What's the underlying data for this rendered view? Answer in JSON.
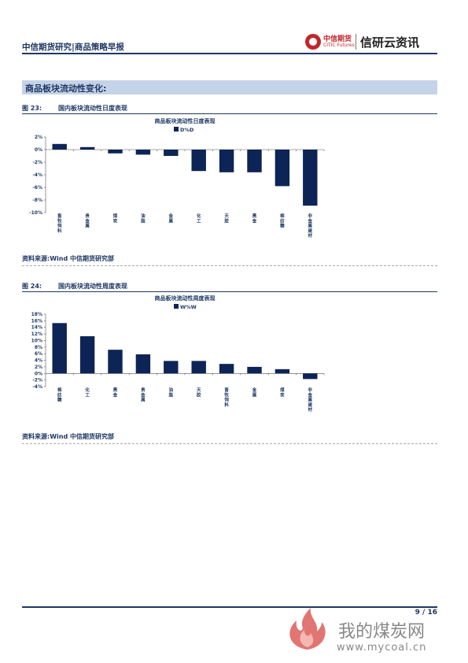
{
  "header": {
    "title": "中信期货研究|商品策略早报",
    "logo_cn": "中信期货",
    "logo_en": "CITIC Futures",
    "brand": "信研云资讯"
  },
  "section": {
    "title": "商品板块流动性变化:"
  },
  "figures": [
    {
      "number": "图 23:",
      "caption": "国内板块流动性日度表现",
      "source": "资料来源:Wind 中信期货研究部"
    },
    {
      "number": "图 24:",
      "caption": "国内板块流动性周度表现",
      "source": "资料来源:Wind 中信期货研究部"
    }
  ],
  "footer": {
    "page": "9 / 16"
  },
  "watermark": {
    "text": "我的煤炭网",
    "url": "www.mycoal.cn"
  },
  "colors": {
    "bar": "#0d2456",
    "accent": "#1f3864",
    "section_bg": "#c5d3e8",
    "logo_red": "#c0272d"
  },
  "chart_data": [
    {
      "type": "bar",
      "title": "商品板块流动性日度表现",
      "categories": [
        "畜牧饲料",
        "贵金属",
        "煤炭",
        "油脂",
        "金属",
        "化工",
        "天胶",
        "黑金",
        "棉纺糖",
        "非金属建材"
      ],
      "series": [
        {
          "name": "D%D",
          "values": [
            0.9,
            0.4,
            -0.6,
            -0.8,
            -1.0,
            -3.4,
            -3.6,
            -3.6,
            -5.8,
            -8.9
          ]
        }
      ],
      "ylim": [
        -10,
        2
      ],
      "yticks": [
        "2%",
        "0%",
        "-2%",
        "-4%",
        "-6%",
        "-8%",
        "-10%"
      ],
      "legend": "top-center",
      "grid": false
    },
    {
      "type": "bar",
      "title": "商品板块流动性周度表现",
      "categories": [
        "棉纺糖",
        "化工",
        "黑金",
        "贵金属",
        "油脂",
        "天胶",
        "畜牧饲料",
        "金属",
        "煤炭",
        "非金属建材"
      ],
      "series": [
        {
          "name": "W%W",
          "values": [
            15.3,
            11.3,
            7.2,
            5.8,
            3.8,
            3.8,
            2.9,
            2.0,
            1.3,
            -1.7
          ]
        }
      ],
      "ylim": [
        -4,
        18
      ],
      "yticks": [
        "18%",
        "16%",
        "14%",
        "12%",
        "10%",
        "8%",
        "6%",
        "4%",
        "2%",
        "0%",
        "-2%",
        "-4%"
      ],
      "legend": "top-center",
      "grid": false
    }
  ]
}
